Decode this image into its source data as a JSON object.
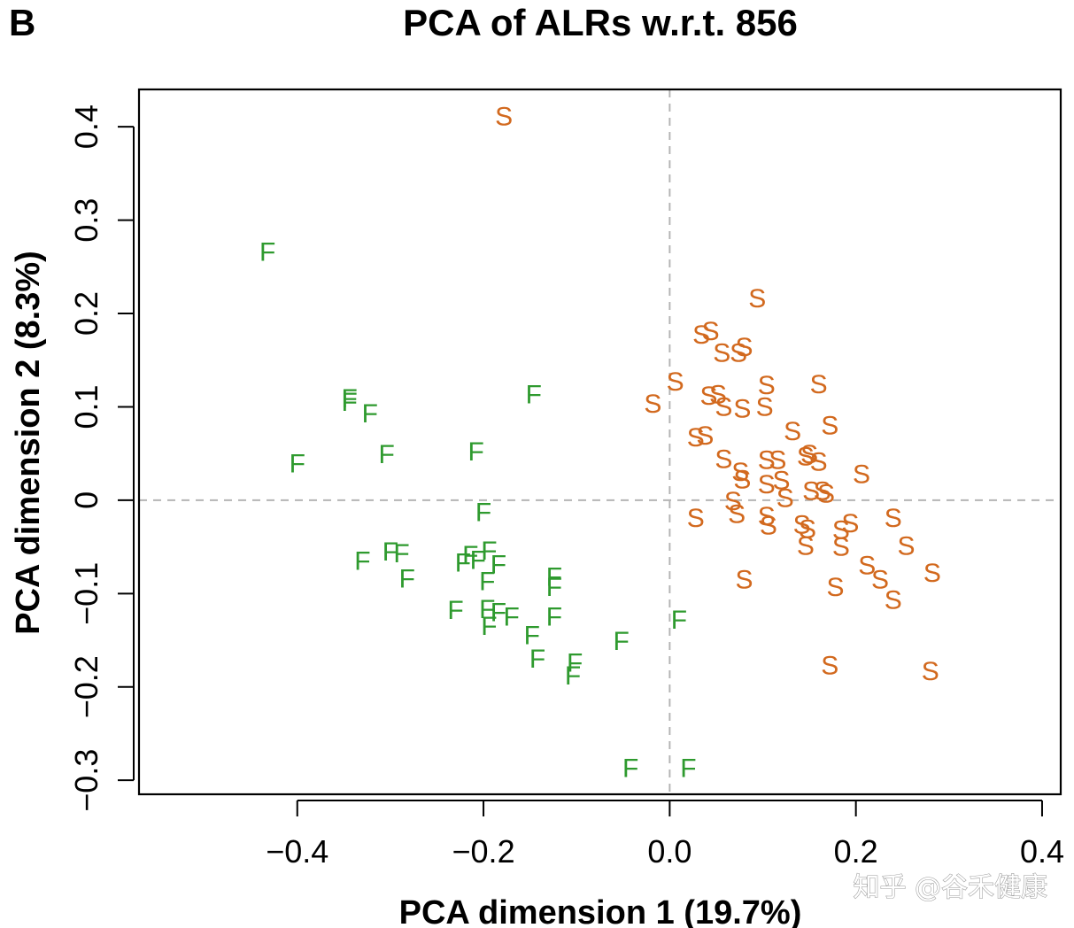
{
  "panel_label": "B",
  "watermark": "知乎 @谷禾健康",
  "colors": {
    "F": "#2e9a2e",
    "S": "#d2691e",
    "refline": "#b5b5b5",
    "frame": "#000000"
  },
  "chart_data": {
    "type": "scatter",
    "title": "PCA of ALRs w.r.t. 856",
    "xlabel": "PCA dimension 1 (19.7%)",
    "ylabel": "PCA dimension 2 (8.3%)",
    "xlim": [
      -0.57,
      0.42
    ],
    "ylim": [
      -0.315,
      0.44
    ],
    "xticks": [
      -0.4,
      -0.2,
      0.0,
      0.2,
      0.4
    ],
    "xtick_labels": [
      "−0.4",
      "−0.2",
      "0.0",
      "0.2",
      "0.4"
    ],
    "yticks": [
      -0.3,
      -0.2,
      -0.1,
      0,
      0.1,
      0.2,
      0.3,
      0.4
    ],
    "ytick_labels": [
      "−0.3",
      "−0.2",
      "−0.1",
      "0",
      "0.1",
      "0.2",
      "0.3",
      "0.4"
    ],
    "reference_lines": {
      "x": 0,
      "y": 0,
      "style": "dashed"
    },
    "grid": false,
    "series": [
      {
        "name": "F",
        "marker": "F",
        "points": [
          [
            -0.432,
            0.267
          ],
          [
            -0.344,
            0.11
          ],
          [
            -0.344,
            0.106
          ],
          [
            -0.322,
            0.094
          ],
          [
            -0.4,
            0.04
          ],
          [
            -0.304,
            0.05
          ],
          [
            -0.208,
            0.053
          ],
          [
            -0.146,
            0.114
          ],
          [
            -0.2,
            -0.012
          ],
          [
            -0.33,
            -0.064
          ],
          [
            -0.3,
            -0.054
          ],
          [
            -0.288,
            -0.056
          ],
          [
            -0.282,
            -0.083
          ],
          [
            -0.222,
            -0.066
          ],
          [
            -0.214,
            -0.058
          ],
          [
            -0.206,
            -0.063
          ],
          [
            -0.194,
            -0.053
          ],
          [
            -0.184,
            -0.068
          ],
          [
            -0.196,
            -0.086
          ],
          [
            -0.124,
            -0.081
          ],
          [
            -0.124,
            -0.092
          ],
          [
            -0.23,
            -0.117
          ],
          [
            -0.196,
            -0.116
          ],
          [
            -0.194,
            -0.134
          ],
          [
            -0.184,
            -0.119
          ],
          [
            -0.17,
            -0.124
          ],
          [
            -0.124,
            -0.124
          ],
          [
            -0.148,
            -0.144
          ],
          [
            -0.142,
            -0.169
          ],
          [
            -0.102,
            -0.173
          ],
          [
            -0.104,
            -0.187
          ],
          [
            -0.052,
            -0.15
          ],
          [
            0.01,
            -0.127
          ],
          [
            -0.042,
            -0.286
          ],
          [
            0.02,
            -0.286
          ]
        ]
      },
      {
        "name": "S",
        "marker": "S",
        "points": [
          [
            -0.178,
            0.412
          ],
          [
            0.094,
            0.217
          ],
          [
            0.034,
            0.178
          ],
          [
            0.044,
            0.182
          ],
          [
            0.056,
            0.159
          ],
          [
            0.074,
            0.159
          ],
          [
            0.08,
            0.165
          ],
          [
            0.006,
            0.128
          ],
          [
            -0.018,
            0.104
          ],
          [
            0.042,
            0.113
          ],
          [
            0.052,
            0.114
          ],
          [
            0.058,
            0.101
          ],
          [
            0.078,
            0.099
          ],
          [
            0.104,
            0.124
          ],
          [
            0.102,
            0.101
          ],
          [
            0.16,
            0.125
          ],
          [
            0.028,
            0.068
          ],
          [
            0.038,
            0.07
          ],
          [
            0.058,
            0.045
          ],
          [
            0.076,
            0.031
          ],
          [
            0.078,
            0.023
          ],
          [
            0.104,
            0.044
          ],
          [
            0.116,
            0.044
          ],
          [
            0.132,
            0.075
          ],
          [
            0.146,
            0.048
          ],
          [
            0.15,
            0.05
          ],
          [
            0.16,
            0.042
          ],
          [
            0.172,
            0.081
          ],
          [
            0.104,
            0.018
          ],
          [
            0.12,
            0.022
          ],
          [
            0.124,
            0.003
          ],
          [
            0.152,
            0.011
          ],
          [
            0.164,
            0.011
          ],
          [
            0.168,
            0.008
          ],
          [
            0.206,
            0.029
          ],
          [
            0.068,
            0.0
          ],
          [
            0.072,
            -0.014
          ],
          [
            0.104,
            -0.016
          ],
          [
            0.106,
            -0.026
          ],
          [
            0.142,
            -0.025
          ],
          [
            0.148,
            -0.03
          ],
          [
            0.146,
            -0.048
          ],
          [
            0.184,
            -0.031
          ],
          [
            0.194,
            -0.024
          ],
          [
            0.184,
            -0.049
          ],
          [
            0.212,
            -0.069
          ],
          [
            0.226,
            -0.084
          ],
          [
            0.24,
            -0.106
          ],
          [
            0.24,
            -0.018
          ],
          [
            0.254,
            -0.048
          ],
          [
            0.282,
            -0.077
          ],
          [
            0.028,
            -0.018
          ],
          [
            0.08,
            -0.084
          ],
          [
            0.178,
            -0.092
          ],
          [
            0.172,
            -0.176
          ],
          [
            0.28,
            -0.182
          ]
        ]
      }
    ]
  }
}
